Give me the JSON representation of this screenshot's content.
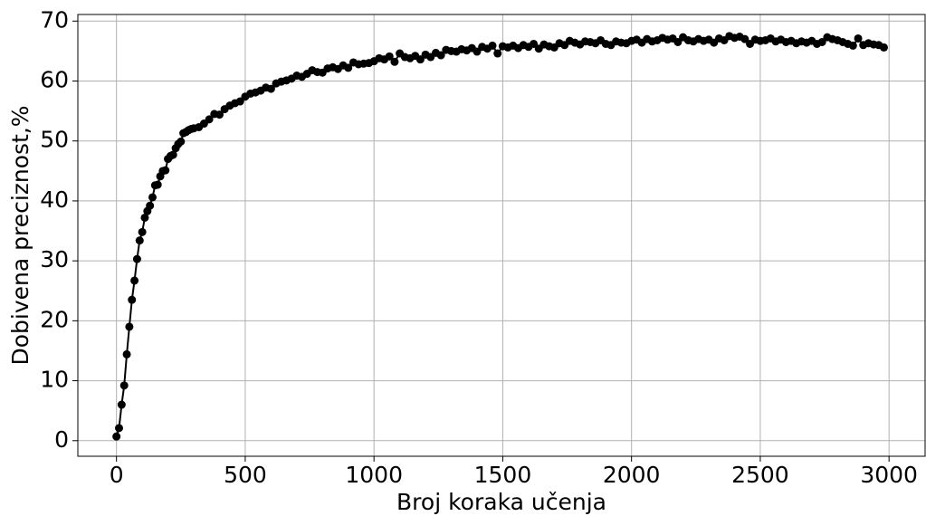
{
  "chart_data": {
    "type": "line",
    "xlabel": "Broj koraka učenja",
    "ylabel": "Dobivena preciznost,%",
    "x": [
      0,
      10,
      20,
      30,
      40,
      50,
      60,
      70,
      80,
      90,
      100,
      110,
      120,
      130,
      140,
      150,
      160,
      170,
      180,
      190,
      200,
      210,
      220,
      230,
      240,
      250,
      260,
      270,
      280,
      290,
      300,
      320,
      340,
      360,
      380,
      400,
      420,
      440,
      460,
      480,
      500,
      520,
      540,
      560,
      580,
      600,
      620,
      640,
      660,
      680,
      700,
      720,
      740,
      760,
      780,
      800,
      820,
      840,
      860,
      880,
      900,
      920,
      940,
      960,
      980,
      1000,
      1020,
      1040,
      1060,
      1080,
      1100,
      1120,
      1140,
      1160,
      1180,
      1200,
      1220,
      1240,
      1260,
      1280,
      1300,
      1320,
      1340,
      1360,
      1380,
      1400,
      1420,
      1440,
      1460,
      1480,
      1500,
      1520,
      1540,
      1560,
      1580,
      1600,
      1620,
      1640,
      1660,
      1680,
      1700,
      1720,
      1740,
      1760,
      1780,
      1800,
      1820,
      1840,
      1860,
      1880,
      1900,
      1920,
      1940,
      1960,
      1980,
      2000,
      2020,
      2040,
      2060,
      2080,
      2100,
      2120,
      2140,
      2160,
      2180,
      2200,
      2220,
      2240,
      2260,
      2280,
      2300,
      2320,
      2340,
      2360,
      2380,
      2400,
      2420,
      2440,
      2460,
      2480,
      2500,
      2520,
      2540,
      2560,
      2580,
      2600,
      2620,
      2640,
      2660,
      2680,
      2700,
      2720,
      2740,
      2760,
      2780,
      2800,
      2820,
      2840,
      2860,
      2880,
      2900,
      2920,
      2940,
      2960,
      2980
    ],
    "series": [
      {
        "color": "#000000",
        "values": [
          0.7,
          2.1,
          6.0,
          9.2,
          14.4,
          19.0,
          23.5,
          26.7,
          30.3,
          33.4,
          34.8,
          37.2,
          38.3,
          39.2,
          40.6,
          42.6,
          42.7,
          44.1,
          45.0,
          45.1,
          47.0,
          47.5,
          47.7,
          48.8,
          49.5,
          49.9,
          51.3,
          51.5,
          51.8,
          52.0,
          52.1,
          52.3,
          52.9,
          53.6,
          54.5,
          54.4,
          55.3,
          55.9,
          56.3,
          56.6,
          57.4,
          57.9,
          58.1,
          58.4,
          58.9,
          58.7,
          59.6,
          59.9,
          60.1,
          60.4,
          60.9,
          60.7,
          61.2,
          61.8,
          61.5,
          61.4,
          62.1,
          62.3,
          62.0,
          62.6,
          62.2,
          63.1,
          62.8,
          62.9,
          63.0,
          63.3,
          63.8,
          63.6,
          64.1,
          63.2,
          64.6,
          64.0,
          63.8,
          64.2,
          63.6,
          64.4,
          64.0,
          64.7,
          64.3,
          65.2,
          65.0,
          64.9,
          65.3,
          65.1,
          65.5,
          64.9,
          65.7,
          65.4,
          65.9,
          64.6,
          65.8,
          65.6,
          65.9,
          65.5,
          66.0,
          65.7,
          66.2,
          65.4,
          66.1,
          65.8,
          65.6,
          66.3,
          66.0,
          66.7,
          66.4,
          66.1,
          66.6,
          66.5,
          66.3,
          66.8,
          66.2,
          66.0,
          66.6,
          66.4,
          66.3,
          66.7,
          66.9,
          66.4,
          67.0,
          66.6,
          66.8,
          67.2,
          66.9,
          67.1,
          66.5,
          67.3,
          66.8,
          66.6,
          67.0,
          66.7,
          66.9,
          66.4,
          67.1,
          66.8,
          67.5,
          67.2,
          67.4,
          67.0,
          66.2,
          66.9,
          66.7,
          66.8,
          67.1,
          66.6,
          66.9,
          66.5,
          66.7,
          66.3,
          66.6,
          66.4,
          66.7,
          66.2,
          66.5,
          67.3,
          67.0,
          66.8,
          66.5,
          66.2,
          65.9,
          67.1,
          66.0,
          66.3,
          66.1,
          66.0,
          65.6
        ]
      }
    ],
    "xlim": [
      -150,
      3140
    ],
    "ylim": [
      -2.6,
      71.1
    ],
    "xticks": [
      0,
      500,
      1000,
      1500,
      2000,
      2500,
      3000
    ],
    "yticks": [
      0,
      10,
      20,
      30,
      40,
      50,
      60,
      70
    ],
    "grid": true,
    "markers": true
  }
}
